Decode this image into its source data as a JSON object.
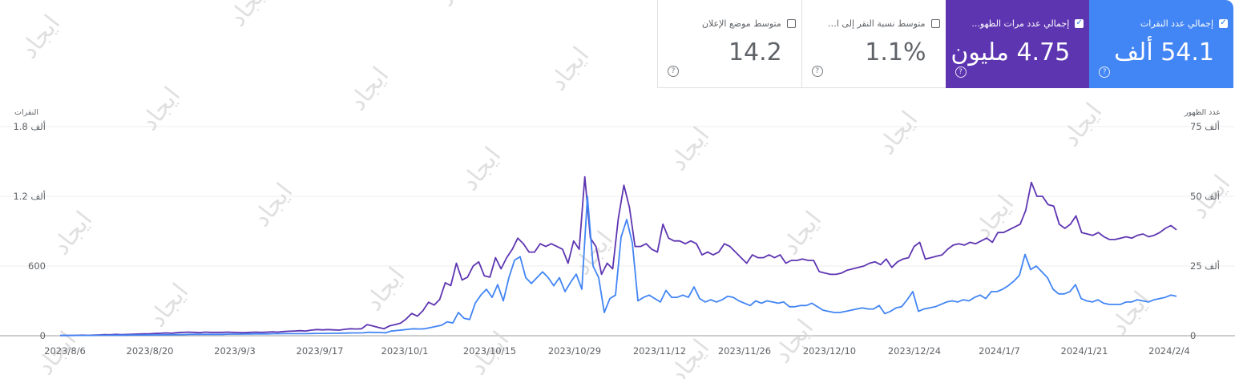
{
  "scorecards": [
    {
      "label": "إجمالي عدد النقرات",
      "value": "54.1 ألف",
      "checked": true,
      "active": true,
      "color": "#4285f4",
      "help_icon": "question-circle-icon"
    },
    {
      "label": "إجمالي عدد مرات الظهو...",
      "value": "4.75 مليون",
      "checked": true,
      "active": true,
      "color": "#5e35b1",
      "help_icon": "question-circle-icon"
    },
    {
      "label": "متوسط نسبة النقر إلى ال...",
      "value": "1.1%",
      "checked": false,
      "active": false,
      "color": "#ffffff",
      "help_icon": "question-circle-icon"
    },
    {
      "label": "متوسط موضع الإعلان",
      "value": "14.2",
      "checked": false,
      "active": false,
      "color": "#ffffff",
      "help_icon": "question-circle-icon"
    }
  ],
  "watermark": "ايجاد",
  "chart_data": {
    "type": "line",
    "left_axis": {
      "title": "النقرات",
      "ticks": [
        "0",
        "600",
        "1.2 ألف",
        "1.8 ألف"
      ],
      "range": [
        0,
        1800
      ]
    },
    "right_axis": {
      "title": "عدد الظهور",
      "ticks": [
        "0",
        "25 ألف",
        "50 ألف",
        "75 ألف"
      ],
      "range": [
        0,
        75000
      ]
    },
    "x_ticks": [
      "2023/8/6",
      "2023/8/20",
      "2023/9/3",
      "2023/9/17",
      "2023/10/1",
      "2023/10/15",
      "2023/10/29",
      "2023/11/12",
      "2023/11/26",
      "2023/12/10",
      "2023/12/24",
      "2024/1/7",
      "2024/1/21",
      "2024/2/4"
    ],
    "grid": true,
    "series": [
      {
        "axis": "right",
        "color": "#5e35b1",
        "values": [
          100,
          100,
          120,
          150,
          200,
          150,
          200,
          300,
          400,
          350,
          500,
          400,
          450,
          550,
          600,
          700,
          650,
          800,
          900,
          1000,
          900,
          1100,
          1200,
          1300,
          1200,
          1100,
          1300,
          1200,
          1200,
          1200,
          1300,
          1200,
          1150,
          1100,
          1200,
          1300,
          1200,
          1300,
          1400,
          1300,
          1500,
          1600,
          1700,
          1800,
          1700,
          2000,
          2200,
          2100,
          2200,
          2100,
          2000,
          2300,
          2500,
          2400,
          2500,
          4000,
          3500,
          3000,
          2500,
          3500,
          4000,
          4500,
          6000,
          8000,
          7000,
          9000,
          12000,
          11000,
          13000,
          19000,
          18000,
          26000,
          20000,
          21000,
          25000,
          26500,
          21500,
          21000,
          28000,
          24000,
          28000,
          31000,
          35000,
          33000,
          30000,
          30000,
          33000,
          32000,
          33000,
          32000,
          31000,
          26000,
          34000,
          31000,
          57000,
          35000,
          32000,
          22000,
          26000,
          24000,
          42000,
          54000,
          46000,
          32000,
          32000,
          33000,
          31000,
          30000,
          40000,
          35000,
          34000,
          34000,
          33000,
          34000,
          33000,
          29000,
          30000,
          29000,
          30000,
          33000,
          32000,
          30000,
          28000,
          26000,
          29000,
          28000,
          28000,
          29000,
          28000,
          29000,
          26000,
          27000,
          27000,
          27500,
          27000,
          27000,
          23000,
          22500,
          22000,
          22000,
          22500,
          23500,
          24000,
          24500,
          25000,
          26000,
          26500,
          25500,
          27500,
          24500,
          26500,
          27500,
          28000,
          32000,
          33500,
          27500,
          28000,
          28500,
          29000,
          31000,
          32500,
          33000,
          32500,
          33500,
          33000,
          34000,
          35000,
          33500,
          37000,
          37000,
          38000,
          39000,
          40000,
          45000,
          55000,
          50000,
          50000,
          47000,
          46500,
          40000,
          38500,
          40000,
          43000,
          37000,
          36500,
          36000,
          37000,
          35500,
          34500,
          34500,
          35000,
          35500,
          35000,
          36000,
          36500,
          35500,
          36000,
          37000,
          38500,
          39500,
          38000
        ]
      },
      {
        "axis": "left",
        "color": "#4285f4",
        "values": [
          2,
          2,
          2,
          3,
          3,
          3,
          3,
          4,
          4,
          4,
          5,
          5,
          5,
          6,
          6,
          6,
          7,
          7,
          8,
          8,
          9,
          10,
          10,
          12,
          12,
          12,
          12,
          12,
          12,
          12,
          14,
          14,
          14,
          15,
          15,
          16,
          16,
          16,
          17,
          17,
          18,
          18,
          18,
          18,
          18,
          19,
          20,
          20,
          21,
          21,
          22,
          23,
          24,
          24,
          25,
          30,
          28,
          28,
          25,
          40,
          45,
          50,
          55,
          60,
          58,
          60,
          70,
          80,
          90,
          120,
          110,
          200,
          150,
          140,
          280,
          350,
          400,
          330,
          440,
          300,
          500,
          650,
          680,
          500,
          450,
          500,
          550,
          500,
          430,
          500,
          380,
          460,
          530,
          400,
          1200,
          600,
          500,
          200,
          320,
          350,
          850,
          1000,
          800,
          300,
          330,
          350,
          320,
          290,
          390,
          330,
          330,
          350,
          330,
          420,
          320,
          290,
          310,
          290,
          310,
          340,
          330,
          300,
          280,
          260,
          300,
          280,
          300,
          290,
          280,
          290,
          250,
          250,
          260,
          260,
          280,
          250,
          220,
          210,
          200,
          200,
          210,
          220,
          230,
          240,
          230,
          230,
          260,
          190,
          210,
          240,
          250,
          310,
          380,
          210,
          230,
          240,
          250,
          270,
          290,
          300,
          290,
          310,
          300,
          330,
          350,
          320,
          380,
          380,
          400,
          430,
          470,
          520,
          700,
          570,
          600,
          550,
          500,
          400,
          360,
          360,
          380,
          440,
          320,
          300,
          290,
          310,
          280,
          270,
          270,
          270,
          290,
          290,
          310,
          300,
          290,
          310,
          320,
          330,
          350,
          340
        ]
      }
    ]
  }
}
